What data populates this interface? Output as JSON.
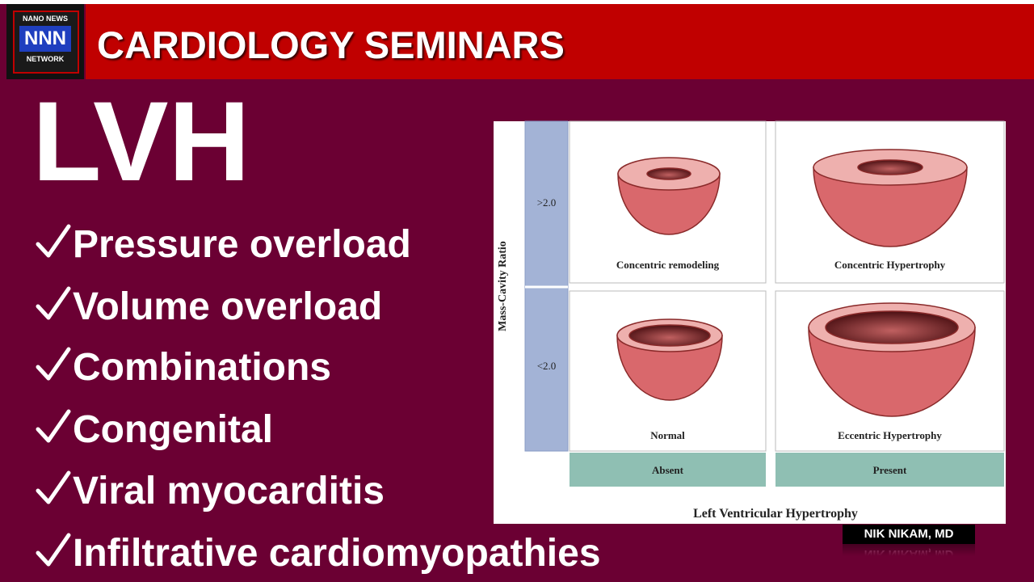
{
  "header": {
    "logo": {
      "top": "NANO NEWS",
      "middle": "NNN",
      "bottom": "NETWORK"
    },
    "title": "CARDIOLOGY SEMINARS"
  },
  "slide": {
    "heading": "LVH",
    "items": [
      "Pressure overload",
      "Volume overload",
      "Combinations",
      "Congenital",
      "Viral myocarditis",
      "Infiltrative cardiomyopathies"
    ]
  },
  "figure": {
    "y_axis_label": "Mass-Cavity Ratio",
    "row_labels": [
      ">2.0",
      "<2.0"
    ],
    "cells": [
      "Concentric remodeling",
      "Concentric Hypertrophy",
      "Normal",
      "Eccentric Hypertrophy"
    ],
    "column_labels": [
      "Absent",
      "Present"
    ],
    "x_axis_label": "Left Ventricular Hypertrophy"
  },
  "author": "NIK NIKAM, MD"
}
